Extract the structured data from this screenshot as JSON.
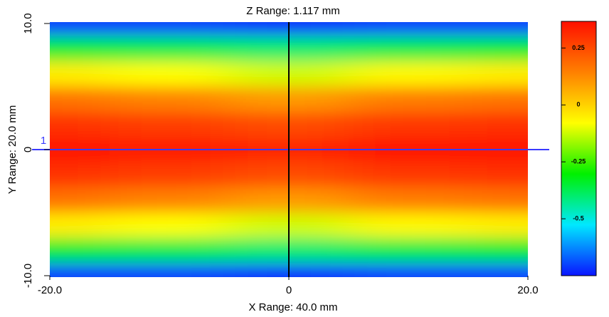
{
  "chart_data": {
    "type": "heatmap",
    "title": "Z Range:  1.117 mm",
    "xlabel": "X Range:  40.0 mm",
    "ylabel": "Y Range:  20.0 mm",
    "x": [
      -20,
      -10,
      0,
      10,
      20
    ],
    "y": [
      10,
      8,
      6,
      4,
      2,
      0,
      -2,
      -4,
      -6,
      -8,
      -10
    ],
    "z": [
      [
        -0.7,
        -0.7,
        -0.72,
        -0.7,
        -0.7
      ],
      [
        -0.35,
        -0.37,
        -0.4,
        -0.37,
        -0.35
      ],
      [
        -0.05,
        -0.08,
        -0.12,
        -0.07,
        -0.05
      ],
      [
        0.17,
        0.14,
        0.1,
        0.15,
        0.17
      ],
      [
        0.3,
        0.28,
        0.25,
        0.29,
        0.3
      ],
      [
        0.35,
        0.34,
        0.32,
        0.35,
        0.35
      ],
      [
        0.3,
        0.28,
        0.25,
        0.29,
        0.3
      ],
      [
        0.17,
        0.14,
        0.1,
        0.15,
        0.17
      ],
      [
        -0.05,
        -0.08,
        -0.12,
        -0.07,
        -0.05
      ],
      [
        -0.35,
        -0.37,
        -0.4,
        -0.37,
        -0.35
      ],
      [
        -0.7,
        -0.7,
        -0.72,
        -0.7,
        -0.7
      ]
    ],
    "colorscale": [
      "#0a14ff",
      "#00e8ff",
      "#00f000",
      "#ffff00",
      "#ff8000",
      "#ff1000"
    ],
    "xlim": [
      -20,
      20
    ],
    "ylim": [
      -10,
      10
    ],
    "zlim": [
      -0.75,
      0.367
    ],
    "xticks": [
      {
        "value": -20,
        "label": "-20.0"
      },
      0,
      {
        "value": 20,
        "label": "20.0"
      }
    ],
    "yticks": [
      {
        "value": 10,
        "label": "10.0"
      },
      0,
      {
        "value": -10,
        "label": "-10.0"
      }
    ],
    "zticks": [
      0.25,
      0,
      -0.25,
      -0.5
    ],
    "cursor_label": "1"
  }
}
